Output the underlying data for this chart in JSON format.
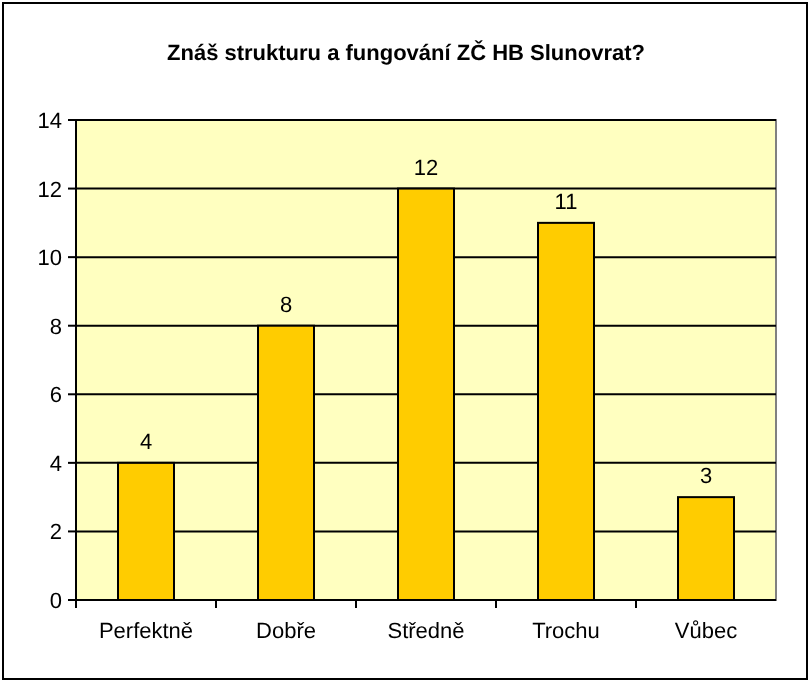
{
  "chart_data": {
    "type": "bar",
    "title": "Znáš strukturu a fungování ZČ HB Slunovrat?",
    "categories": [
      "Perfektně",
      "Dobře",
      "Středně",
      "Trochu",
      "Vůbec"
    ],
    "values": [
      4,
      8,
      12,
      11,
      3
    ],
    "color": "#ffcc00",
    "ylim": [
      0,
      14
    ],
    "yticks": [
      0,
      2,
      4,
      6,
      8,
      10,
      12,
      14
    ],
    "grid": "y",
    "data_labels": true
  }
}
